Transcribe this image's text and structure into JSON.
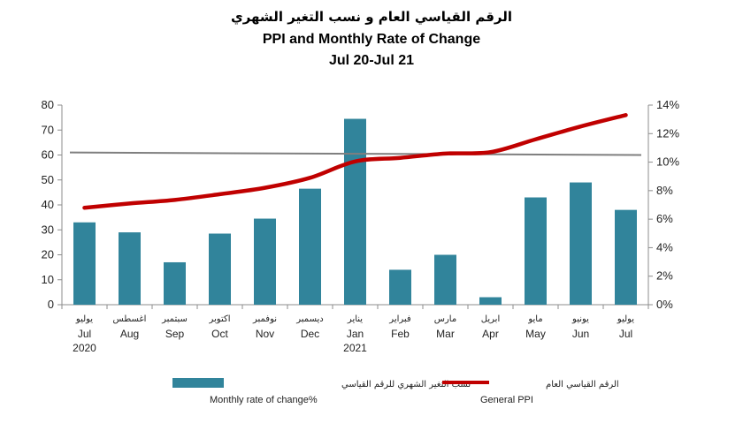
{
  "chart_data": {
    "type": "bar",
    "title_ar": "الرقم القياسي العام و نسب التغير الشهري",
    "title": "PPI and Monthly Rate  of Change",
    "subtitle": "Jul 20-Jul 21",
    "categories": [
      "Jul",
      "Aug",
      "Sep",
      "Oct",
      "Nov",
      "Dec",
      "Jan",
      "Feb",
      "Mar",
      "Apr",
      "May",
      "Jun",
      "Jul"
    ],
    "categories_ar": [
      "يوليو",
      "اغسطس",
      "سبتمبر",
      "اكتوبر",
      "نوفمبر",
      "ديسمبر",
      "يناير",
      "فبراير",
      "مارس",
      "ابريل",
      "مايو",
      "يونيو",
      "يوليو"
    ],
    "year_labels": [
      {
        "index": 0,
        "label": "2020"
      },
      {
        "index": 6,
        "label": "2021"
      }
    ],
    "series": [
      {
        "name": "Monthly rate of change%",
        "name_ar": "نسب التغير الشهري للرقم القياسي",
        "type": "bar",
        "axis": "left",
        "color": "#31849B",
        "values": [
          33,
          29,
          17,
          28.5,
          34.5,
          46.5,
          74.5,
          14,
          20,
          3,
          43,
          49,
          38
        ]
      },
      {
        "name": "General PPI",
        "name_ar": "الرقم القياسي العام",
        "type": "line",
        "axis": "right",
        "color": "#C00000",
        "values": [
          6.8,
          7.1,
          7.35,
          7.75,
          8.2,
          8.9,
          10.05,
          10.3,
          10.6,
          10.7,
          11.6,
          12.5,
          13.3
        ]
      }
    ],
    "trendline": {
      "axis": "left",
      "start": 61,
      "end": 60,
      "color": "#7F7F7F"
    },
    "y_left": {
      "min": 0,
      "max": 80,
      "ticks": [
        0,
        10,
        20,
        30,
        40,
        50,
        60,
        70,
        80
      ]
    },
    "y_right": {
      "min": 0,
      "max": 14,
      "ticks": [
        "0%",
        "2%",
        "4%",
        "6%",
        "8%",
        "10%",
        "12%",
        "14%"
      ]
    },
    "legend_position": "bottom",
    "grid": false
  }
}
